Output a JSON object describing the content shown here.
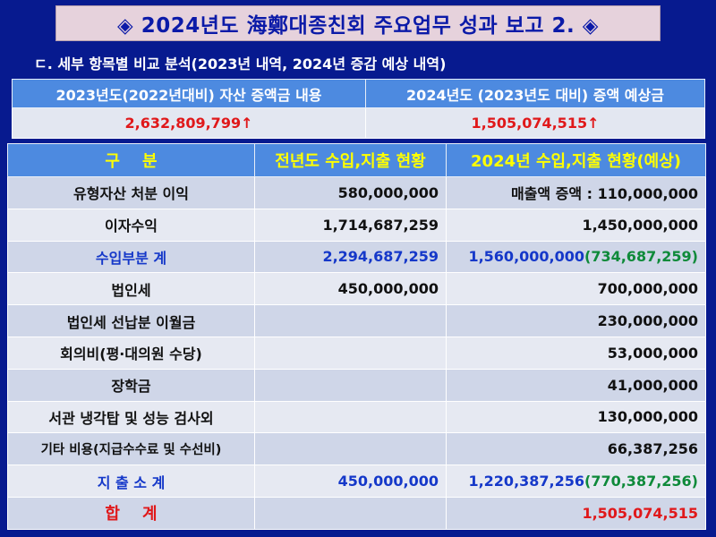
{
  "title": "◈ 2024년도 海鄭대종친회 주요업무 성과 보고 2. ◈",
  "subtitle": "ㄷ. 세부 항목별 비교 분석(2023년 내역, 2024년 증감 예상 내역)",
  "summary": {
    "headers": [
      "2023년도(2022년대비) 자산 증액금 내용",
      "2024년도 (2023년도 대비) 증액 예상금"
    ],
    "values": [
      "2,632,809,799↑",
      "1,505,074,515↑"
    ]
  },
  "table": {
    "headers": [
      "구    분",
      "전년도 수입,지출 현황",
      "2024년 수입,지출 현황(예상)"
    ],
    "rows": [
      {
        "label": "유형자산 처분 이익",
        "prev": "580,000,000",
        "cur": "매출액 증액 : 110,000,000",
        "diff": ""
      },
      {
        "label": "이자수익",
        "prev": "1,714,687,259",
        "cur": "1,450,000,000",
        "diff": ""
      },
      {
        "label": "수입부분 계",
        "prev": "2,294,687,259",
        "cur": "1,560,000,000",
        "diff": "(734,687,259)"
      },
      {
        "label": "법인세",
        "prev": "450,000,000",
        "cur": "700,000,000",
        "diff": ""
      },
      {
        "label": "법인세 선납분 이월금",
        "prev": "",
        "cur": "230,000,000",
        "diff": ""
      },
      {
        "label": "회의비(평·대의원 수당)",
        "prev": "",
        "cur": "53,000,000",
        "diff": ""
      },
      {
        "label": "장학금",
        "prev": "",
        "cur": "41,000,000",
        "diff": ""
      },
      {
        "label": "서관 냉각탑 및 성능 검사외",
        "prev": "",
        "cur": "130,000,000",
        "diff": ""
      },
      {
        "label": "기타 비용(지급수수료 및 수선비)",
        "prev": "",
        "cur": "66,387,256",
        "diff": ""
      },
      {
        "label": "지 출 소 계",
        "prev": "450,000,000",
        "cur": "1,220,387,256",
        "diff": "(770,387,256)"
      },
      {
        "label": "합    계",
        "prev": "",
        "cur": "1,505,074,515",
        "diff": ""
      }
    ]
  }
}
